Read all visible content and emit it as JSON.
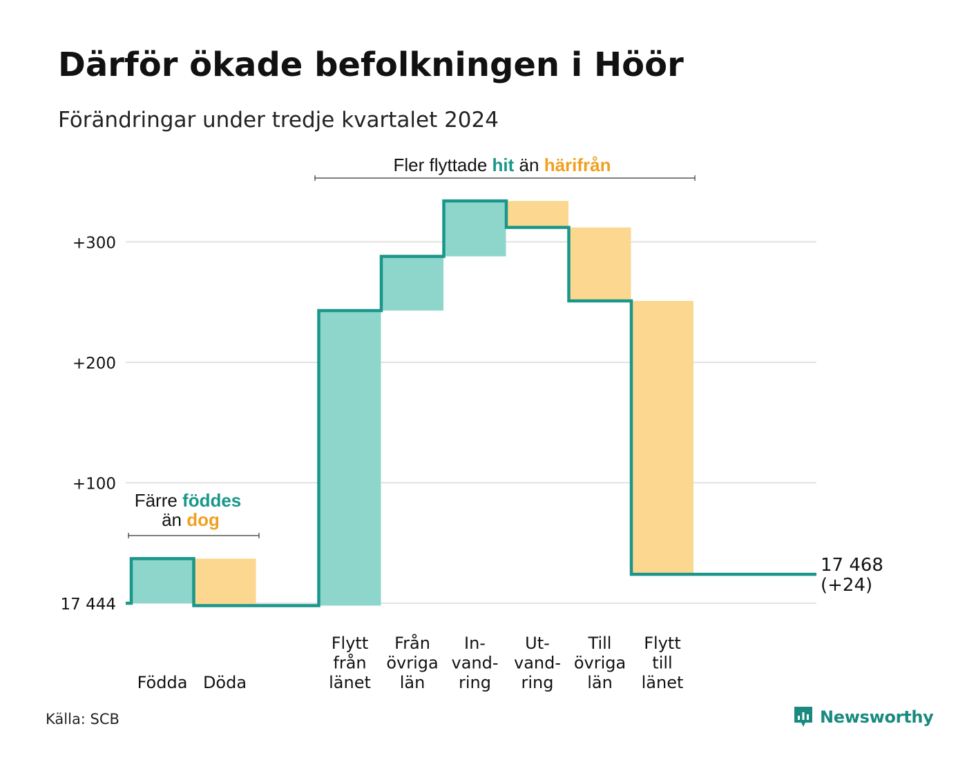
{
  "title": "Därför ökade befolkningen i Höör",
  "subtitle": "Förändringar under tredje kvartalet 2024",
  "source": "Källa: SCB",
  "brand": "Newsworthy",
  "colors": {
    "inflow_fill": "#8ed6cc",
    "outflow_fill": "#fbd78f",
    "line": "#1a968a",
    "inflow_text": "#1a968a",
    "outflow_text": "#f0a020",
    "grid": "#e2e2e2",
    "text": "#111111"
  },
  "annotations": {
    "births": {
      "line1_prefix": "Färre ",
      "line1_key": "föddes",
      "line2_prefix": "än ",
      "line2_key": "dog"
    },
    "moves": {
      "prefix": "Fler flyttade ",
      "key1": "hit",
      "middle": " än ",
      "key2": "härifrån"
    }
  },
  "end_label": {
    "value": "17 468",
    "change": "(+24)"
  },
  "chart_data": {
    "type": "waterfall",
    "title": "Därför ökade befolkningen i Höör",
    "subtitle": "Förändringar under tredje kvartalet 2024",
    "baseline": 17444,
    "baseline_label": "17 444",
    "final_value": 17468,
    "net_change": 24,
    "y_ticks": [
      {
        "value": 0,
        "label": "17 444"
      },
      {
        "value": 100,
        "label": "+100"
      },
      {
        "value": 200,
        "label": "+200"
      },
      {
        "value": 300,
        "label": "+300"
      }
    ],
    "ylim": [
      0,
      340
    ],
    "steps": [
      {
        "label": "Födda",
        "lines": [
          "Födda"
        ],
        "value": 37,
        "kind": "inflow"
      },
      {
        "label": "Döda",
        "lines": [
          "Döda"
        ],
        "value": -39,
        "kind": "outflow"
      },
      {
        "label": "",
        "lines": [],
        "value": 0,
        "kind": "gap"
      },
      {
        "label": "Flytt från länet",
        "lines": [
          "Flytt",
          "från",
          "länet"
        ],
        "value": 245,
        "kind": "inflow"
      },
      {
        "label": "Från övriga län",
        "lines": [
          "Från",
          "övriga",
          "län"
        ],
        "value": 45,
        "kind": "inflow"
      },
      {
        "label": "Invandring",
        "lines": [
          "In-",
          "vand-",
          "ring"
        ],
        "value": 46,
        "kind": "inflow"
      },
      {
        "label": "Utvandring",
        "lines": [
          "Ut-",
          "vand-",
          "ring"
        ],
        "value": -22,
        "kind": "outflow"
      },
      {
        "label": "Till övriga län",
        "lines": [
          "Till",
          "övriga",
          "län"
        ],
        "value": -61,
        "kind": "outflow"
      },
      {
        "label": "Flytt till länet",
        "lines": [
          "Flytt",
          "till",
          "länet"
        ],
        "value": -227,
        "kind": "outflow"
      }
    ]
  }
}
